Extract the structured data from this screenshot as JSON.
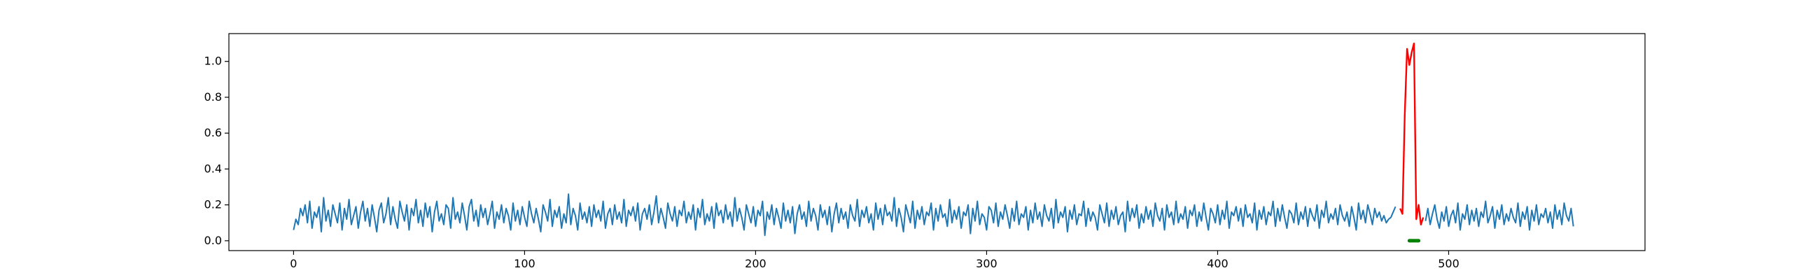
{
  "chart_data": {
    "type": "line",
    "title": "",
    "xlabel": "",
    "ylabel": "",
    "xlim": [
      -28,
      585
    ],
    "ylim": [
      -0.055,
      1.155
    ],
    "grid": false,
    "x_ticks": [
      {
        "value": 0,
        "label": "0"
      },
      {
        "value": 100,
        "label": "100"
      },
      {
        "value": 200,
        "label": "200"
      },
      {
        "value": 300,
        "label": "300"
      },
      {
        "value": 400,
        "label": "400"
      },
      {
        "value": 500,
        "label": "500"
      }
    ],
    "y_ticks": [
      {
        "value": 0.0,
        "label": "0.0"
      },
      {
        "value": 0.2,
        "label": "0.2"
      },
      {
        "value": 0.4,
        "label": "0.4"
      },
      {
        "value": 0.6,
        "label": "0.6"
      },
      {
        "value": 0.8,
        "label": "0.8"
      },
      {
        "value": 1.0,
        "label": "1.0"
      }
    ],
    "series": [
      {
        "color": "#1f77b4",
        "x_start": 0,
        "values": [
          0.06,
          0.12,
          0.09,
          0.18,
          0.14,
          0.2,
          0.1,
          0.22,
          0.07,
          0.16,
          0.13,
          0.19,
          0.05,
          0.24,
          0.11,
          0.17,
          0.08,
          0.2,
          0.15,
          0.1,
          0.21,
          0.06,
          0.18,
          0.12,
          0.23,
          0.09,
          0.14,
          0.19,
          0.07,
          0.16,
          0.22,
          0.11,
          0.18,
          0.08,
          0.2,
          0.13,
          0.05,
          0.17,
          0.21,
          0.1,
          0.15,
          0.24,
          0.09,
          0.19,
          0.12,
          0.07,
          0.22,
          0.16,
          0.11,
          0.2,
          0.06,
          0.18,
          0.14,
          0.23,
          0.1,
          0.17,
          0.08,
          0.21,
          0.13,
          0.19,
          0.05,
          0.16,
          0.22,
          0.11,
          0.15,
          0.09,
          0.2,
          0.18,
          0.07,
          0.24,
          0.12,
          0.16,
          0.1,
          0.21,
          0.14,
          0.06,
          0.19,
          0.23,
          0.11,
          0.17,
          0.08,
          0.2,
          0.13,
          0.18,
          0.09,
          0.15,
          0.22,
          0.07,
          0.16,
          0.12,
          0.2,
          0.1,
          0.18,
          0.14,
          0.06,
          0.21,
          0.11,
          0.17,
          0.09,
          0.19,
          0.13,
          0.08,
          0.22,
          0.15,
          0.1,
          0.18,
          0.12,
          0.05,
          0.2,
          0.16,
          0.11,
          0.23,
          0.08,
          0.17,
          0.13,
          0.19,
          0.07,
          0.15,
          0.1,
          0.26,
          0.09,
          0.18,
          0.14,
          0.06,
          0.21,
          0.12,
          0.16,
          0.1,
          0.19,
          0.08,
          0.2,
          0.13,
          0.17,
          0.11,
          0.22,
          0.07,
          0.15,
          0.18,
          0.09,
          0.2,
          0.12,
          0.16,
          0.1,
          0.23,
          0.08,
          0.17,
          0.14,
          0.19,
          0.11,
          0.21,
          0.06,
          0.15,
          0.18,
          0.12,
          0.2,
          0.09,
          0.16,
          0.25,
          0.1,
          0.18,
          0.13,
          0.07,
          0.21,
          0.15,
          0.11,
          0.19,
          0.08,
          0.17,
          0.14,
          0.22,
          0.1,
          0.16,
          0.12,
          0.2,
          0.06,
          0.18,
          0.13,
          0.23,
          0.09,
          0.15,
          0.11,
          0.19,
          0.07,
          0.21,
          0.14,
          0.17,
          0.1,
          0.2,
          0.12,
          0.16,
          0.08,
          0.24,
          0.11,
          0.18,
          0.13,
          0.06,
          0.2,
          0.15,
          0.1,
          0.19,
          0.08,
          0.17,
          0.14,
          0.22,
          0.03,
          0.16,
          0.12,
          0.2,
          0.09,
          0.18,
          0.13,
          0.07,
          0.21,
          0.11,
          0.17,
          0.1,
          0.19,
          0.04,
          0.15,
          0.2,
          0.12,
          0.16,
          0.08,
          0.22,
          0.11,
          0.18,
          0.14,
          0.06,
          0.2,
          0.13,
          0.17,
          0.09,
          0.19,
          0.05,
          0.15,
          0.21,
          0.1,
          0.18,
          0.12,
          0.16,
          0.07,
          0.2,
          0.14,
          0.11,
          0.23,
          0.08,
          0.17,
          0.13,
          0.19,
          0.1,
          0.15,
          0.06,
          0.21,
          0.12,
          0.18,
          0.09,
          0.2,
          0.14,
          0.16,
          0.11,
          0.24,
          0.08,
          0.18,
          0.13,
          0.05,
          0.2,
          0.15,
          0.1,
          0.22,
          0.07,
          0.17,
          0.12,
          0.19,
          0.09,
          0.16,
          0.14,
          0.21,
          0.06,
          0.18,
          0.11,
          0.2,
          0.13,
          0.15,
          0.08,
          0.23,
          0.1,
          0.17,
          0.12,
          0.19,
          0.07,
          0.16,
          0.14,
          0.2,
          0.04,
          0.18,
          0.11,
          0.22,
          0.09,
          0.15,
          0.13,
          0.06,
          0.19,
          0.17,
          0.1,
          0.21,
          0.08,
          0.16,
          0.12,
          0.2,
          0.14,
          0.07,
          0.18,
          0.11,
          0.22,
          0.09,
          0.15,
          0.13,
          0.19,
          0.06,
          0.17,
          0.1,
          0.21,
          0.12,
          0.16,
          0.08,
          0.2,
          0.14,
          0.11,
          0.18,
          0.07,
          0.23,
          0.1,
          0.16,
          0.13,
          0.19,
          0.05,
          0.17,
          0.12,
          0.2,
          0.09,
          0.15,
          0.14,
          0.22,
          0.08,
          0.18,
          0.11,
          0.16,
          0.13,
          0.06,
          0.2,
          0.15,
          0.1,
          0.21,
          0.08,
          0.17,
          0.12,
          0.19,
          0.09,
          0.14,
          0.16,
          0.05,
          0.22,
          0.11,
          0.18,
          0.13,
          0.2,
          0.07,
          0.15,
          0.1,
          0.19,
          0.12,
          0.17,
          0.08,
          0.21,
          0.14,
          0.11,
          0.18,
          0.06,
          0.2,
          0.13,
          0.16,
          0.09,
          0.22,
          0.1,
          0.15,
          0.12,
          0.19,
          0.07,
          0.17,
          0.14,
          0.2,
          0.08,
          0.16,
          0.11,
          0.21,
          0.13,
          0.06,
          0.18,
          0.15,
          0.1,
          0.2,
          0.09,
          0.17,
          0.12,
          0.22,
          0.07,
          0.16,
          0.14,
          0.19,
          0.11,
          0.18,
          0.08,
          0.2,
          0.13,
          0.15,
          0.1,
          0.21,
          0.06,
          0.17,
          0.12,
          0.19,
          0.09,
          0.16,
          0.14,
          0.22,
          0.08,
          0.18,
          0.11,
          0.2,
          0.13,
          0.07,
          0.17,
          0.15,
          0.1,
          0.21,
          0.09,
          0.16,
          0.12,
          0.19,
          0.08,
          0.18,
          0.14,
          0.11,
          0.2,
          0.07,
          0.17,
          0.13,
          0.22,
          0.1,
          0.15,
          0.12,
          0.18,
          0.09,
          0.2,
          0.14,
          0.11,
          0.16,
          0.08,
          0.19,
          0.13,
          0.06,
          0.21,
          0.12,
          0.17,
          0.1,
          0.2,
          0.15,
          0.09,
          0.18,
          0.13,
          0.16,
          0.11,
          0.14,
          0.1,
          0.12,
          0.13,
          0.16,
          0.19
        ],
        "mid_values": [
          0.0,
          0.0,
          0.0,
          0.0,
          0.0,
          0.0,
          0.0,
          0.0
        ],
        "tail_x_start": 490,
        "tail_values": [
          0.11,
          0.18,
          0.09,
          0.15,
          0.2,
          0.12,
          0.07,
          0.16,
          0.11,
          0.19,
          0.08,
          0.14,
          0.17,
          0.1,
          0.21,
          0.06,
          0.15,
          0.12,
          0.2,
          0.09,
          0.17,
          0.11,
          0.18,
          0.08,
          0.16,
          0.13,
          0.22,
          0.1,
          0.14,
          0.19,
          0.07,
          0.17,
          0.12,
          0.2,
          0.09,
          0.15,
          0.11,
          0.18,
          0.13,
          0.1,
          0.21,
          0.08,
          0.16,
          0.12,
          0.19,
          0.06,
          0.17,
          0.11,
          0.2,
          0.09,
          0.15,
          0.13,
          0.18,
          0.1,
          0.16,
          0.07,
          0.2,
          0.12,
          0.17,
          0.09,
          0.21,
          0.14,
          0.11,
          0.18,
          0.08
        ]
      },
      {
        "color": "#ff0000",
        "x": [
          479,
          480,
          481,
          482,
          483,
          484,
          485,
          486,
          487,
          488,
          489
        ],
        "values": [
          0.18,
          0.15,
          0.7,
          1.07,
          0.98,
          1.05,
          1.1,
          0.12,
          0.2,
          0.09,
          0.13
        ]
      },
      {
        "color": "#008000",
        "type": "segment",
        "x": [
          483,
          487
        ],
        "values": [
          0.0,
          0.0
        ]
      }
    ]
  }
}
